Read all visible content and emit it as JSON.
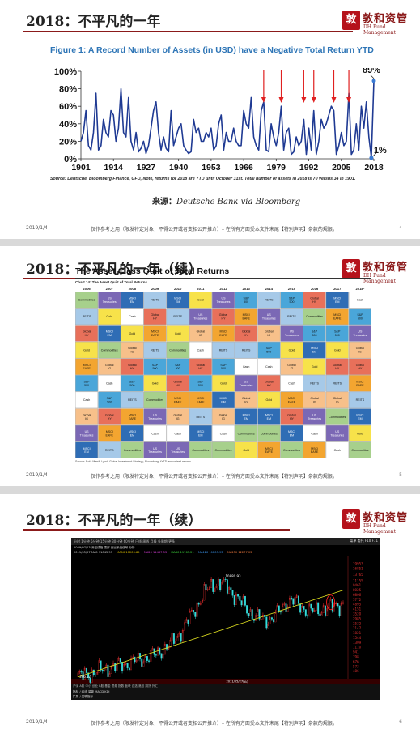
{
  "slides": [
    {
      "title": "2018：不平凡的一年",
      "figure_title": "Figure 1: A Record Number of Assets (in USD) have a Negative Total Return YTD",
      "source_note": "Source: Deutsche, Bloomberg Finance, GFD, Note, returns for 2018 are YTD until October 31st. Total number of assets in 2018 is 70 versus 34 in 1901.",
      "attribution_prefix": "来源：",
      "attribution_text": "Deutsche Bank via Bloomberg",
      "footer_date": "2019/1/4",
      "footer_disclaimer": "仅作参考之用（限发特定对象，不得公开或者变相公开推介）– 在所有方面受本文件末尾【特别声明】条款的规限。",
      "page_number": "4"
    },
    {
      "title": "2018：不平凡的一年（续）",
      "quilt_title": "The Asset Class Quilt of Total Returns",
      "quilt_subtitle": "Chart 14: The Asset Quilt of Total Returns",
      "quilt_source": "Source: BofA Merrill Lynch Global Investment Strategy, Bloomberg. *YTD annualized returns",
      "footer_date": "2019/1/4",
      "footer_disclaimer": "仅作参考之用（限发特定对象，不得公开或者变相公开推介）– 在所有方面受本文件末尾【特别声明】条款的规限。",
      "page_number": "5"
    },
    {
      "title": "2018：不平凡的一年（续）",
      "footer_date": "2019/1/4",
      "footer_disclaimer": "仅作参考之用（限发特定对象，不得公开或者变相公开推介）– 在所有方面受本文件末尾【特别声明】条款的规限。",
      "page_number": "6"
    }
  ],
  "logo": {
    "seal_char": "敦",
    "name": "敦和资管",
    "sub": "DH Fund Management",
    "color": "#8b1a1a",
    "seal_color": "#b5121b"
  },
  "chart_data": [
    {
      "type": "line",
      "title": "Figure 1: A Record Number of Assets (in USD) have a Negative Total Return YTD",
      "xlabel": "",
      "ylabel": "",
      "x_ticks": [
        "1901",
        "1914",
        "1927",
        "1940",
        "1953",
        "1966",
        "1979",
        "1992",
        "2005",
        "2018"
      ],
      "y_ticks": [
        "0%",
        "20%",
        "40%",
        "60%",
        "80%",
        "100%"
      ],
      "ylim": [
        0,
        100
      ],
      "xlim": [
        1901,
        2018
      ],
      "grid": false,
      "line_color": "#1f3a93",
      "arrow_color": "#e02020",
      "annotations": [
        {
          "text": "89%",
          "x": 2018,
          "y": 89
        },
        {
          "text": "1%",
          "x": 2017,
          "y": 1
        }
      ],
      "arrows_at_years": [
        1974,
        1981,
        1990,
        1994,
        2002,
        2008
      ],
      "series": [
        {
          "values": [
            [
              1901,
              20
            ],
            [
              1902,
              30
            ],
            [
              1903,
              55
            ],
            [
              1904,
              15
            ],
            [
              1905,
              10
            ],
            [
              1906,
              30
            ],
            [
              1907,
              75
            ],
            [
              1908,
              10
            ],
            [
              1909,
              15
            ],
            [
              1910,
              45
            ],
            [
              1911,
              30
            ],
            [
              1912,
              25
            ],
            [
              1913,
              55
            ],
            [
              1914,
              50
            ],
            [
              1915,
              20
            ],
            [
              1916,
              35
            ],
            [
              1917,
              80
            ],
            [
              1918,
              30
            ],
            [
              1919,
              25
            ],
            [
              1920,
              70
            ],
            [
              1921,
              20
            ],
            [
              1922,
              10
            ],
            [
              1923,
              30
            ],
            [
              1924,
              8
            ],
            [
              1925,
              12
            ],
            [
              1926,
              20
            ],
            [
              1927,
              6
            ],
            [
              1928,
              15
            ],
            [
              1929,
              35
            ],
            [
              1930,
              55
            ],
            [
              1931,
              65
            ],
            [
              1932,
              30
            ],
            [
              1933,
              10
            ],
            [
              1934,
              25
            ],
            [
              1935,
              12
            ],
            [
              1936,
              8
            ],
            [
              1937,
              55
            ],
            [
              1938,
              15
            ],
            [
              1939,
              25
            ],
            [
              1940,
              35
            ],
            [
              1941,
              40
            ],
            [
              1942,
              15
            ],
            [
              1943,
              10
            ],
            [
              1944,
              6
            ],
            [
              1945,
              8
            ],
            [
              1946,
              45
            ],
            [
              1947,
              30
            ],
            [
              1948,
              35
            ],
            [
              1949,
              20
            ],
            [
              1950,
              20
            ],
            [
              1951,
              30
            ],
            [
              1952,
              25
            ],
            [
              1953,
              35
            ],
            [
              1954,
              10
            ],
            [
              1955,
              15
            ],
            [
              1956,
              40
            ],
            [
              1957,
              50
            ],
            [
              1958,
              10
            ],
            [
              1959,
              30
            ],
            [
              1960,
              20
            ],
            [
              1961,
              20
            ],
            [
              1962,
              35
            ],
            [
              1963,
              20
            ],
            [
              1964,
              15
            ],
            [
              1965,
              15
            ],
            [
              1966,
              55
            ],
            [
              1967,
              40
            ],
            [
              1968,
              35
            ],
            [
              1969,
              70
            ],
            [
              1970,
              25
            ],
            [
              1971,
              15
            ],
            [
              1972,
              10
            ],
            [
              1973,
              55
            ],
            [
              1974,
              65
            ],
            [
              1975,
              10
            ],
            [
              1976,
              8
            ],
            [
              1977,
              40
            ],
            [
              1978,
              25
            ],
            [
              1979,
              15
            ],
            [
              1980,
              30
            ],
            [
              1981,
              60
            ],
            [
              1982,
              10
            ],
            [
              1983,
              30
            ],
            [
              1984,
              35
            ],
            [
              1985,
              5
            ],
            [
              1986,
              8
            ],
            [
              1987,
              25
            ],
            [
              1988,
              15
            ],
            [
              1989,
              20
            ],
            [
              1990,
              45
            ],
            [
              1991,
              5
            ],
            [
              1992,
              35
            ],
            [
              1993,
              10
            ],
            [
              1994,
              55
            ],
            [
              1995,
              5
            ],
            [
              1996,
              20
            ],
            [
              1997,
              45
            ],
            [
              1998,
              35
            ],
            [
              1999,
              40
            ],
            [
              2000,
              50
            ],
            [
              2001,
              60
            ],
            [
              2002,
              55
            ],
            [
              2003,
              5
            ],
            [
              2004,
              15
            ],
            [
              2005,
              30
            ],
            [
              2006,
              15
            ],
            [
              2007,
              20
            ],
            [
              2008,
              75
            ],
            [
              2009,
              5
            ],
            [
              2010,
              10
            ],
            [
              2011,
              40
            ],
            [
              2012,
              10
            ],
            [
              2013,
              60
            ],
            [
              2014,
              35
            ],
            [
              2015,
              65
            ],
            [
              2016,
              25
            ],
            [
              2017,
              1
            ],
            [
              2018,
              89
            ]
          ]
        }
      ]
    },
    {
      "type": "table",
      "title": "The Asset Class Quilt of Total Returns",
      "columns": [
        "2006",
        "2007",
        "2008",
        "2009",
        "2010",
        "2011",
        "2012",
        "2013",
        "2014",
        "2015",
        "2016",
        "2017",
        "2018*"
      ]
    },
    {
      "type": "line",
      "title": "",
      "y_ticks": [
        "19953",
        "16851",
        "13765",
        "11155",
        "9461",
        "8025",
        "6806",
        "5772",
        "4895",
        "4151",
        "3520",
        "2985",
        "2532",
        "2147",
        "1821",
        "1544",
        "1309",
        "1110",
        "941",
        "798",
        "676",
        "573",
        "486"
      ],
      "annotations": [
        {
          "text": "10880.93",
          "position": "peak"
        },
        {
          "text": "396.52",
          "position": "low"
        },
        {
          "text": "2011/05/27(五)",
          "position": "bottom-axis"
        }
      ],
      "ylim": [
        396.52,
        19953
      ],
      "scale": "log"
    }
  ],
  "quilt": {
    "legend_colors": {
      "Commodities": "#a7d08c",
      "US Treasuries": "#7b68b5",
      "Cash": "#ffffff",
      "Global IG": "#f7c08a",
      "MSCI EAFE": "#f3a530",
      "REITS": "#a6c9e8",
      "MSCI EM": "#2f6db5",
      "S&P 500": "#4aa6d9",
      "Gold": "#f7e24a",
      "Global HY": "#e8705a"
    },
    "rows": [
      [
        "Commodities",
        "US Treasuries",
        "MSCI EM",
        "REITS",
        "MSCI EM",
        "Gold",
        "US Treasuries",
        "S&P 500",
        "REITS",
        "S&P 500",
        "Global HY",
        "MSCI EM",
        "Cash"
      ],
      [
        "REITS",
        "Gold",
        "Cash",
        "Global HY",
        "REITS",
        "US Treasuries",
        "Global HY",
        "MSCI EAFE",
        "US Treasuries",
        "REITS",
        "Commodities",
        "MSCI EAFE",
        "S&P 500"
      ],
      [
        "Global HY",
        "MSCI EM",
        "Gold",
        "MSCI EAFE",
        "Gold",
        "Global IG",
        "MSCI EAFE",
        "Global HY",
        "Global IG",
        "US Treasuries",
        "S&P 500",
        "S&P 500",
        "US Treasuries"
      ],
      [
        "Gold",
        "Commodities",
        "Global IG",
        "REITS",
        "Commodities",
        "Cash",
        "REITS",
        "REITS",
        "S&P 500",
        "Gold",
        "MSCI EM",
        "Gold",
        "Global IG"
      ],
      [
        "MSCI EAFE",
        "Global IG",
        "Global HY",
        "S&P 500",
        "S&P 500",
        "Global HY",
        "S&P 500",
        "Cash",
        "Cash",
        "Global IG",
        "Gold",
        "Global HY",
        "Global HY"
      ],
      [
        "S&P 500",
        "Cash",
        "S&P 500",
        "Gold",
        "Global HY",
        "S&P 500",
        "Gold",
        "US Treasuries",
        "Global HY",
        "Cash",
        "REITS",
        "REITS",
        "MSCI EAFE"
      ],
      [
        "Cash",
        "S&P 500",
        "REITS",
        "Commodities",
        "MSCI EAFE",
        "MSCI EAFE",
        "MSCI EM",
        "Global IG",
        "Gold",
        "MSCI EAFE",
        "Global IG",
        "Global IG",
        "REITS"
      ],
      [
        "Global IG",
        "Global HY",
        "MSCI EAFE",
        "US Treasuries",
        "Global IG",
        "REITS",
        "Global IG",
        "MSCI EM",
        "MSCI EM",
        "Global HY",
        "US Treasuries",
        "Commodities",
        "MSCI EM"
      ],
      [
        "US Treasuries",
        "MSCI EAFE",
        "MSCI EM",
        "Cash",
        "Cash",
        "MSCI EM",
        "Cash",
        "Commodities",
        "Commodities",
        "MSCI EM",
        "Cash",
        "US Treasuries",
        "Gold"
      ],
      [
        "MSCI EM",
        "REITS",
        "Commodities",
        "US Treasuries",
        "US Treasuries",
        "Commodities",
        "Commodities",
        "Gold",
        "MSCI EAFE",
        "Commodities",
        "MSCI EAFE",
        "Cash",
        "Commodities"
      ]
    ]
  },
  "terminal": {
    "menu": "分时  1分钟  5分钟  15分钟  30分钟  60分钟  日线  周线  月线  多周期  更多",
    "info_line": "2009/07/13 深证成指  顶部  查出系统信号  分析",
    "info_line2": [
      "2011/05/27  MA5 11045.93",
      "MA10 11209.85",
      "MA20 11487.53",
      "MA60 11765.21",
      "MA120 11203.93",
      "MA250 12277.03"
    ],
    "bottom_tabs": "沪深  A股  中小  创业  B股  基金  债券  指数  板块  自选  港股  期货  外汇",
    "bottom_label1": "指标 / 均线  量能  MACD  KDJ",
    "bottom_label2": "扩展 / 关联指标",
    "right_top": "菜单  委托  F10  F11"
  }
}
